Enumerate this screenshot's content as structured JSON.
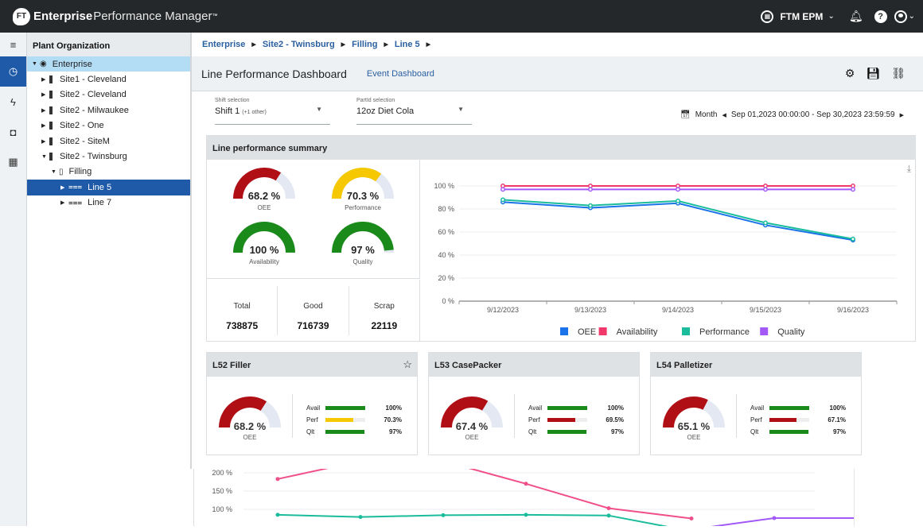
{
  "app": {
    "logo_mark": "FT",
    "brand_strong": "Enterprise",
    "brand_light": "Performance Manager",
    "tm": "™"
  },
  "topbar": {
    "tenant": "FTM EPM",
    "icons": [
      "tenant-icon",
      "chevron-down-icon",
      "bell-icon",
      "help-icon",
      "user-icon",
      "chevron-down-icon"
    ]
  },
  "rail": {
    "items": [
      {
        "icon": "menu-icon",
        "glyph": "≡"
      },
      {
        "icon": "dashboard-icon",
        "glyph": "◷",
        "active": true
      },
      {
        "icon": "lightning-icon",
        "glyph": "ϟ"
      },
      {
        "icon": "shapes-icon",
        "glyph": "◘"
      },
      {
        "icon": "layout-icon",
        "glyph": "▦"
      }
    ]
  },
  "tree": {
    "title": "Plant Organization",
    "nodes": [
      {
        "label": "Enterprise",
        "level": 0,
        "expanded": true,
        "type": "enterprise",
        "state": "root"
      },
      {
        "label": "Site1 - Cleveland",
        "level": 1,
        "expanded": false,
        "type": "site"
      },
      {
        "label": "Site2 - Cleveland",
        "level": 1,
        "expanded": false,
        "type": "site"
      },
      {
        "label": "Site2 - Milwaukee",
        "level": 1,
        "expanded": false,
        "type": "site"
      },
      {
        "label": "Site2 - One",
        "level": 1,
        "expanded": false,
        "type": "site"
      },
      {
        "label": "Site2 - SiteM",
        "level": 1,
        "expanded": false,
        "type": "site"
      },
      {
        "label": "Site2 - Twinsburg",
        "level": 1,
        "expanded": true,
        "type": "site"
      },
      {
        "label": "Filling",
        "level": 2,
        "expanded": true,
        "type": "area"
      },
      {
        "label": "Line 5",
        "level": 3,
        "expanded": false,
        "type": "line",
        "state": "selected"
      },
      {
        "label": "Line 7",
        "level": 3,
        "expanded": false,
        "type": "line"
      }
    ]
  },
  "breadcrumb": [
    "Enterprise",
    "Site2 - Twinsburg",
    "Filling",
    "Line 5"
  ],
  "header": {
    "title": "Line Performance Dashboard",
    "link": "Event Dashboard",
    "icons": [
      "settings-icon",
      "save-icon",
      "link-icon"
    ]
  },
  "filters": {
    "shift": {
      "label": "Shift selection",
      "value": "Shift 1",
      "extra": "(+1 other)"
    },
    "part": {
      "label": "PartId selection",
      "value": "12oz Diet Cola"
    },
    "period": "Month",
    "range": "Sep 01,2023 00:00:00 - Sep 30,2023 23:59:59"
  },
  "summary": {
    "title": "Line performance summary",
    "gauges": [
      {
        "label": "OEE",
        "value": 68.2,
        "display": "68.2 %",
        "color": "#b00f16"
      },
      {
        "label": "Performance",
        "value": 70.3,
        "display": "70.3 %",
        "color": "#f5c800"
      },
      {
        "label": "Availability",
        "value": 100,
        "display": "100 %",
        "color": "#1a8a1a"
      },
      {
        "label": "Quality",
        "value": 97,
        "display": "97 %",
        "color": "#1a8a1a"
      }
    ],
    "counts": [
      {
        "label": "Total",
        "value": "738875"
      },
      {
        "label": "Good",
        "value": "716739"
      },
      {
        "label": "Scrap",
        "value": "22119"
      }
    ]
  },
  "chart_data": [
    {
      "type": "line",
      "title": "",
      "x": [
        "9/12/2023",
        "9/13/2023",
        "9/14/2023",
        "9/15/2023",
        "9/16/2023"
      ],
      "ylim": [
        0,
        100
      ],
      "yticks": [
        "0 %",
        "20 %",
        "40 %",
        "60 %",
        "80 %",
        "100 %"
      ],
      "legend": "bottom",
      "grid": true,
      "series": [
        {
          "name": "OEE",
          "color": "#1a73e8",
          "values": [
            86,
            81,
            85,
            66,
            53
          ]
        },
        {
          "name": "Availability",
          "color": "#f0386b",
          "values": [
            100,
            100,
            100,
            100,
            100
          ]
        },
        {
          "name": "Performance",
          "color": "#1abc9c",
          "values": [
            88,
            83,
            87,
            68,
            54
          ]
        },
        {
          "name": "Quality",
          "color": "#a259f7",
          "values": [
            97,
            97,
            97,
            97,
            97
          ]
        }
      ]
    },
    {
      "type": "line",
      "title": "",
      "partial": true,
      "ylim": [
        50,
        230
      ],
      "yticks": [
        "100 %",
        "150 %",
        "200 %"
      ],
      "grid": true,
      "series": [
        {
          "name": "pink",
          "color": "#f0508a",
          "values": [
            183,
            232,
            232,
            170,
            103,
            75
          ]
        },
        {
          "name": "teal",
          "color": "#1abc9c",
          "values": [
            85,
            79,
            84,
            85,
            83,
            40
          ]
        },
        {
          "name": "purple",
          "color": "#a259f7",
          "values": [
            null,
            null,
            null,
            null,
            null,
            45,
            76,
            76
          ]
        }
      ]
    }
  ],
  "machines": [
    {
      "name": "L52 Filler",
      "favorite_icon": true,
      "oee": 68.2,
      "oee_display": "68.2 %",
      "oee_label": "OEE",
      "metrics": [
        {
          "label": "Avail",
          "value": 100,
          "display": "100%",
          "color": "#1a8a1a"
        },
        {
          "label": "Perf",
          "value": 70.3,
          "display": "70.3%",
          "color": "#f5c800"
        },
        {
          "label": "Qlt",
          "value": 97,
          "display": "97%",
          "color": "#1a8a1a"
        }
      ]
    },
    {
      "name": "L53 CasePacker",
      "favorite_icon": false,
      "oee": 67.4,
      "oee_display": "67.4 %",
      "oee_label": "OEE",
      "metrics": [
        {
          "label": "Avail",
          "value": 100,
          "display": "100%",
          "color": "#1a8a1a"
        },
        {
          "label": "Perf",
          "value": 69.5,
          "display": "69.5%",
          "color": "#b00f16"
        },
        {
          "label": "Qlt",
          "value": 97,
          "display": "97%",
          "color": "#1a8a1a"
        }
      ]
    },
    {
      "name": "L54 Palletizer",
      "favorite_icon": false,
      "oee": 65.1,
      "oee_display": "65.1 %",
      "oee_label": "OEE",
      "metrics": [
        {
          "label": "Avail",
          "value": 100,
          "display": "100%",
          "color": "#1a8a1a"
        },
        {
          "label": "Perf",
          "value": 67.1,
          "display": "67.1%",
          "color": "#b00f16"
        },
        {
          "label": "Qlt",
          "value": 97,
          "display": "97%",
          "color": "#1a8a1a"
        }
      ]
    }
  ],
  "colors": {
    "accent": "#1e5aa8",
    "gauge_track": "#e3e8f2",
    "topbar": "#25282a"
  }
}
